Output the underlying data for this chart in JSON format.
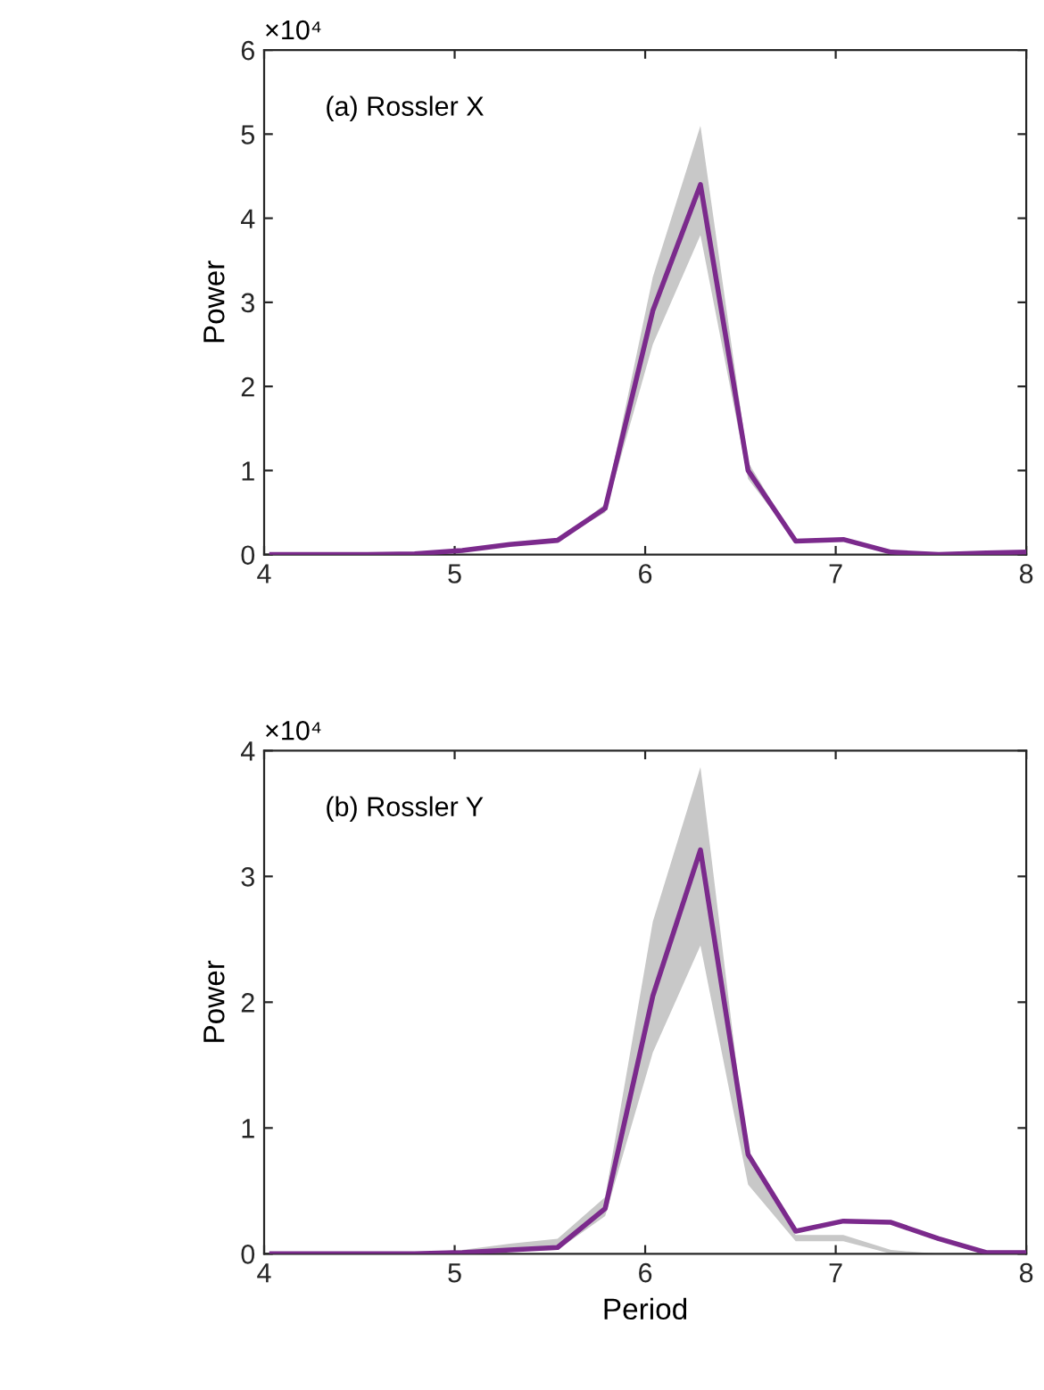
{
  "chart_data": [
    {
      "type": "line",
      "ylabel": "Power",
      "annotations": [
        "(a) Rossler X",
        "×10⁴"
      ],
      "x": [
        4.04,
        4.29,
        4.54,
        4.79,
        5.04,
        5.29,
        5.54,
        5.79,
        6.04,
        6.29,
        6.54,
        6.79,
        7.04,
        7.29,
        7.54,
        7.79,
        8
      ],
      "series": [
        {
          "color": "#7b2a8c",
          "values": [
            0,
            0,
            0,
            0.01,
            0.05,
            0.12,
            0.17,
            0.55,
            2.9,
            4.4,
            1.0,
            0.16,
            0.18,
            0.03,
            0,
            0.02,
            0.03
          ],
          "lower": [
            0,
            0,
            0,
            0.01,
            0.05,
            0.12,
            0.17,
            0.5,
            2.5,
            3.8,
            0.9,
            0.16,
            0.18,
            0.03,
            0,
            0.02,
            0.03
          ],
          "upper": [
            0,
            0,
            0,
            0.01,
            0.05,
            0.12,
            0.17,
            0.6,
            3.3,
            5.1,
            1.1,
            0.16,
            0.18,
            0.03,
            0,
            0.02,
            0.03
          ]
        }
      ],
      "xlim": [
        4,
        8
      ],
      "xticks": [
        4,
        5,
        6,
        7,
        8
      ],
      "ylim": [
        0,
        6
      ],
      "yticks": [
        0,
        1,
        2,
        3,
        4,
        5,
        6
      ],
      "grid": false,
      "legend": false,
      "line_style": "solid"
    },
    {
      "type": "line",
      "xlabel": "Period",
      "ylabel": "Power",
      "annotations": [
        "(b) Rossler Y",
        "×10⁴"
      ],
      "x": [
        4.04,
        4.29,
        4.54,
        4.79,
        5.04,
        5.29,
        5.54,
        5.79,
        6.04,
        6.29,
        6.54,
        6.79,
        7.04,
        7.29,
        7.54,
        7.79,
        8
      ],
      "series": [
        {
          "color": "#7b2a8c",
          "values": [
            0,
            0,
            0,
            0,
            0.01,
            0.03,
            0.05,
            0.36,
            2.05,
            3.21,
            0.79,
            0.18,
            0.26,
            0.25,
            0.12,
            0.01,
            0.01
          ],
          "lower": [
            0,
            0,
            0,
            0,
            0.01,
            0.02,
            0.03,
            0.3,
            1.6,
            2.45,
            0.55,
            0.1,
            0.1,
            0,
            0,
            0,
            0
          ],
          "upper": [
            0,
            0,
            0,
            0.01,
            0.03,
            0.08,
            0.12,
            0.45,
            2.64,
            3.87,
            0.75,
            0.15,
            0.15,
            0.03,
            0,
            0,
            0
          ]
        }
      ],
      "xlim": [
        4,
        8
      ],
      "xticks": [
        4,
        5,
        6,
        7,
        8
      ],
      "ylim": [
        0,
        4
      ],
      "yticks": [
        0,
        1,
        2,
        3,
        4
      ],
      "grid": false,
      "legend": false,
      "line_style": "solid"
    }
  ]
}
